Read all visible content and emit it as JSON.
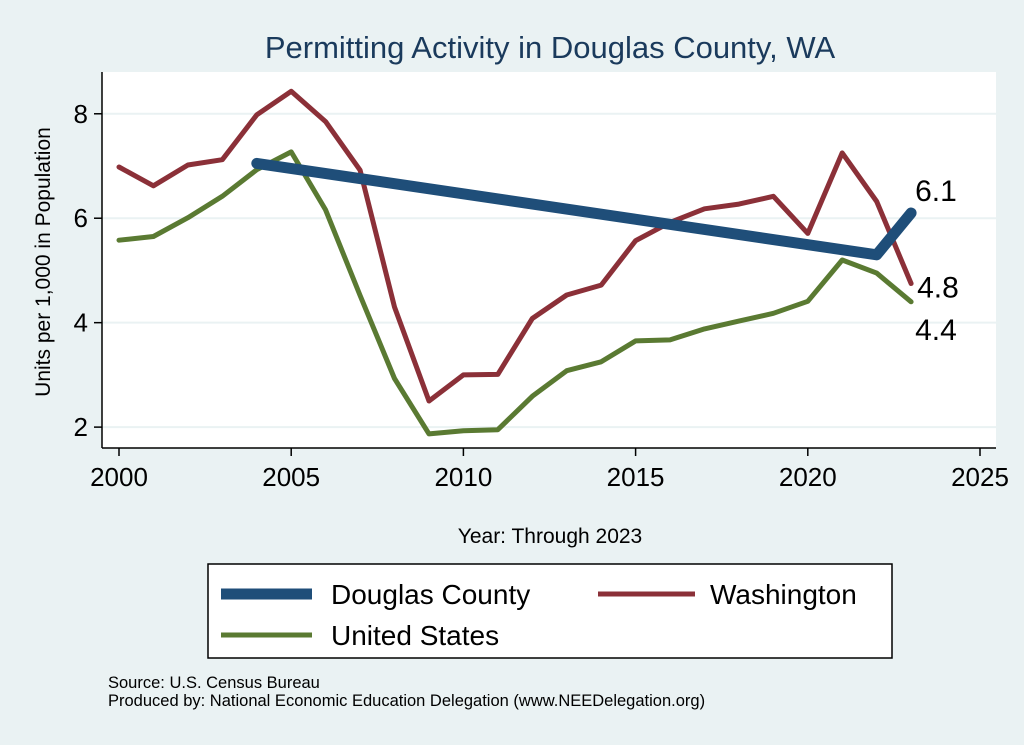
{
  "chart_data": {
    "type": "line",
    "title": "Permitting Activity in Douglas County, WA",
    "xlabel": "Year: Through 2023",
    "ylabel": "Units per 1,000 in Population",
    "xlim": [
      2000,
      2025
    ],
    "ylim": [
      1.6,
      8.8
    ],
    "xticks": [
      2000,
      2005,
      2010,
      2015,
      2020,
      2025
    ],
    "yticks": [
      2,
      4,
      6,
      8
    ],
    "grid": true,
    "series": [
      {
        "name": "Douglas County",
        "color": "#1f4e79",
        "width": 11,
        "x": [
          2004,
          2022,
          2023
        ],
        "values": [
          7.05,
          5.3,
          6.1
        ]
      },
      {
        "name": "Washington",
        "color": "#8b3038",
        "width": 5,
        "x": [
          2000,
          2001,
          2002,
          2003,
          2004,
          2005,
          2006,
          2007,
          2008,
          2009,
          2010,
          2011,
          2012,
          2013,
          2014,
          2015,
          2016,
          2017,
          2018,
          2019,
          2020,
          2021,
          2022,
          2023
        ],
        "values": [
          6.98,
          6.62,
          7.02,
          7.12,
          7.98,
          8.43,
          7.85,
          6.92,
          4.3,
          2.5,
          3.0,
          3.01,
          4.08,
          4.53,
          4.72,
          5.57,
          5.92,
          6.18,
          6.27,
          6.42,
          5.71,
          7.25,
          6.32,
          4.75
        ]
      },
      {
        "name": "United States",
        "color": "#5a7a32",
        "width": 5,
        "x": [
          2000,
          2001,
          2002,
          2003,
          2004,
          2005,
          2006,
          2007,
          2008,
          2009,
          2010,
          2011,
          2012,
          2013,
          2014,
          2015,
          2016,
          2017,
          2018,
          2019,
          2020,
          2021,
          2022,
          2023
        ],
        "values": [
          5.58,
          5.65,
          6.01,
          6.42,
          6.93,
          7.27,
          6.16,
          4.52,
          2.93,
          1.87,
          1.93,
          1.95,
          2.59,
          3.08,
          3.25,
          3.65,
          3.67,
          3.88,
          4.03,
          4.18,
          4.41,
          5.2,
          4.95,
          4.4
        ]
      }
    ],
    "end_labels": [
      {
        "series": "Douglas County",
        "text": "6.1"
      },
      {
        "series": "Washington",
        "text": "4.8"
      },
      {
        "series": "United States",
        "text": "4.4"
      }
    ],
    "legend": {
      "placement": "bottom",
      "entries": [
        "Douglas County",
        "Washington",
        "United States"
      ]
    }
  },
  "source": {
    "line1": "Source: U.S. Census Bureau",
    "line2": "Produced by: National Economic Education Delegation (www.NEEDelegation.org)"
  }
}
